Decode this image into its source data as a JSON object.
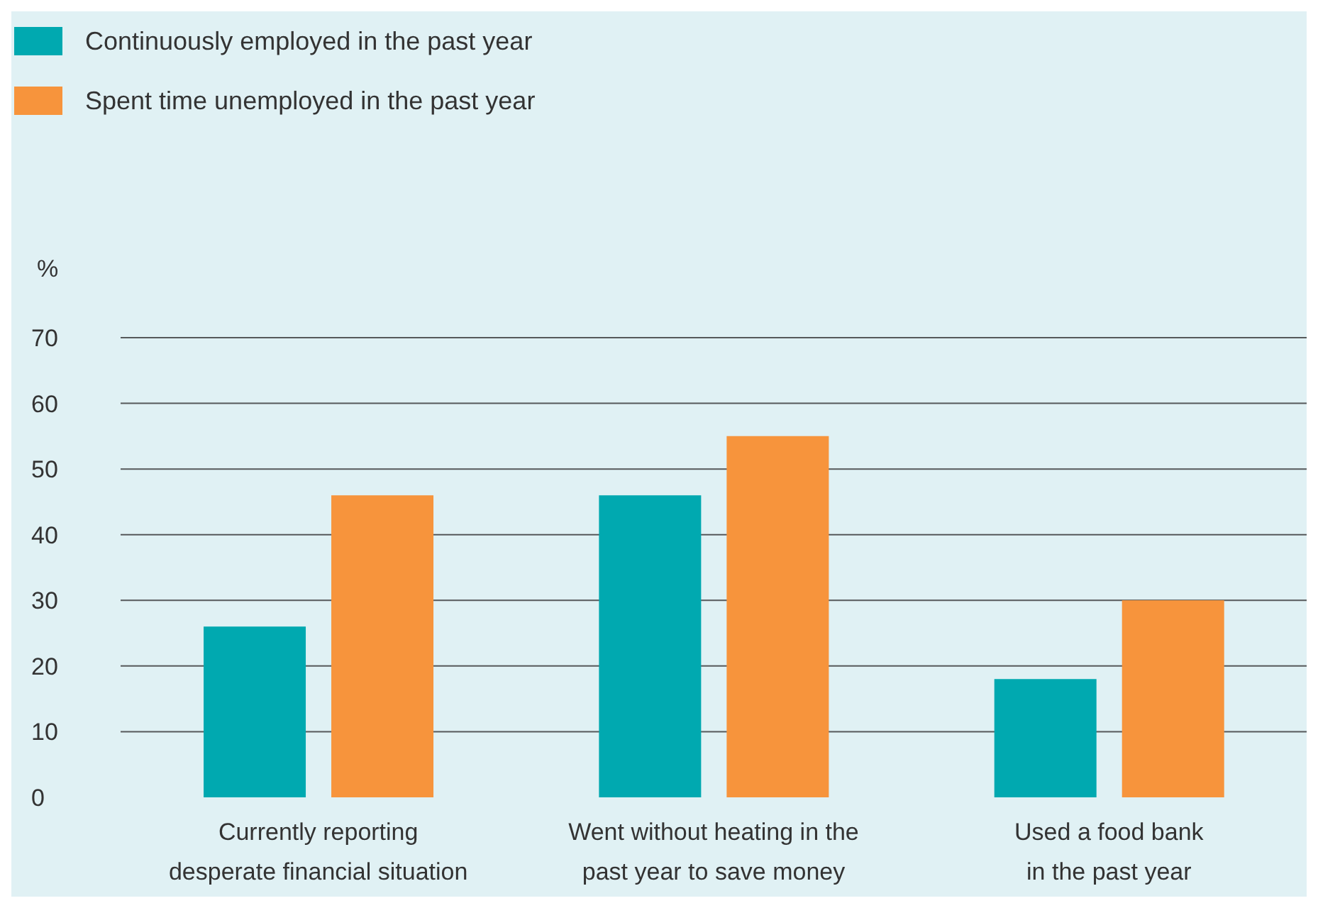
{
  "chart_data": {
    "type": "bar",
    "ylabel": "%",
    "categories": [
      "Currently reporting\ndesperate financial situation",
      "Went without heating in the\npast year to save money",
      "Used a food bank\nin the past year"
    ],
    "series": [
      {
        "name": "Continuously employed in the past year",
        "color": "#00a9b0",
        "values": [
          26,
          46,
          18
        ]
      },
      {
        "name": "Spent time unemployed in the past year",
        "color": "#f7943c",
        "values": [
          46,
          55,
          30
        ]
      }
    ],
    "ylim": [
      0,
      70
    ],
    "yticks": [
      0,
      10,
      20,
      30,
      40,
      50,
      60,
      70
    ],
    "grid": "y",
    "legend": "top left"
  }
}
